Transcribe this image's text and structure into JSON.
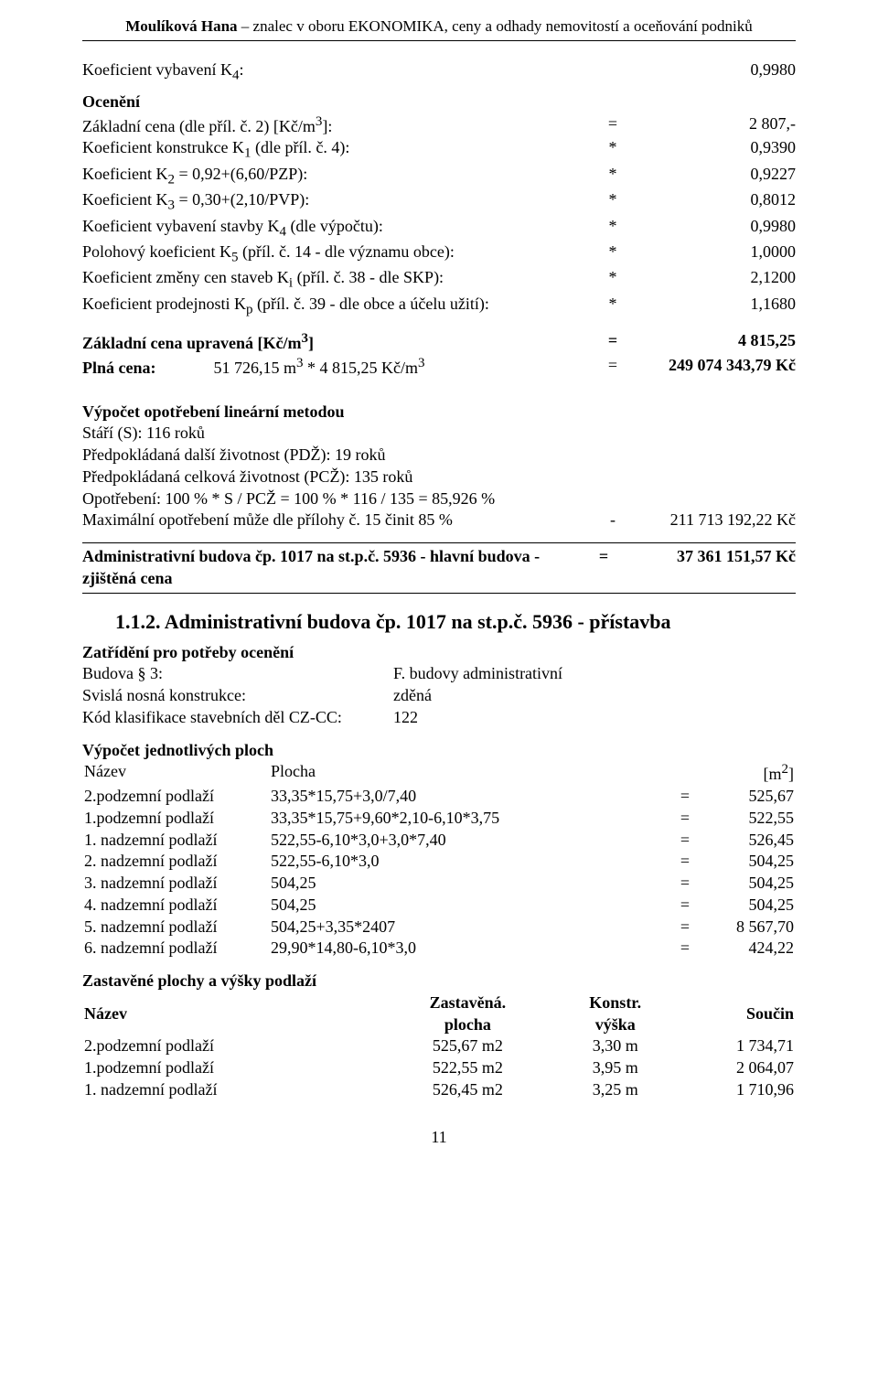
{
  "header": {
    "name_bold": "Moulíková Hana",
    "rest": " – znalec v oboru EKONOMIKA, ceny a odhady nemovitostí a oceňování podniků"
  },
  "koef_vybaveni": {
    "label": "Koeficient vybavení K",
    "sub": "4",
    "after": ":",
    "value": "0,9980"
  },
  "oceneni_title": "Ocenění",
  "lines1": [
    {
      "label_html": "Základní cena (dle příl. č. 2) [Kč/m<sup>3</sup>]:",
      "op": "=",
      "val": "2 807,-"
    },
    {
      "label_html": "Koeficient konstrukce K<sub>1</sub> (dle příl. č. 4):",
      "op": "*",
      "val": "0,9390"
    },
    {
      "label_html": "Koeficient K<sub>2</sub> = 0,92+(6,60/PZP):",
      "op": "*",
      "val": "0,9227"
    },
    {
      "label_html": "Koeficient K<sub>3</sub> = 0,30+(2,10/PVP):",
      "op": "*",
      "val": "0,8012"
    },
    {
      "label_html": "Koeficient vybavení stavby K<sub>4</sub> (dle výpočtu):",
      "op": "*",
      "val": "0,9980"
    },
    {
      "label_html": "Polohový koeficient K<sub>5</sub> (příl. č. 14 - dle významu obce):",
      "op": "*",
      "val": "1,0000"
    },
    {
      "label_html": "Koeficient změny cen staveb K<sub>i</sub> (příl. č. 38 - dle SKP):",
      "op": "*",
      "val": "2,1200"
    },
    {
      "label_html": "Koeficient prodejnosti K<sub>p</sub> (příl. č. 39 - dle obce a účelu užití):",
      "op": "*",
      "val": "1,1680"
    }
  ],
  "upravena": {
    "label_html": "Základní cena upravená [Kč/m<sup>3</sup>]",
    "op": "=",
    "val": "4 815,25"
  },
  "plna": {
    "label_html": "<b>Plná cena:</b>&nbsp;&nbsp;&nbsp;&nbsp;&nbsp;&nbsp;&nbsp;&nbsp;&nbsp;&nbsp;&nbsp;&nbsp;&nbsp;&nbsp;51 726,15 m<sup>3</sup> * 4 815,25 Kč/m<sup>3</sup>",
    "op": "=",
    "val": "249 074 343,79 Kč"
  },
  "opotrebeni": {
    "title": "Výpočet opotřebení lineární metodou",
    "line1": "Stáří (S): 116 roků",
    "line2": "Předpokládaná další životnost (PDŽ): 19 roků",
    "line3": "Předpokládaná celková životnost (PCŽ): 135 roků",
    "line4": "Opotřebení: 100 % * S / PCŽ = 100 % * 116 / 135 = 85,926 %",
    "line5_label": "Maximální opotřebení může dle přílohy č. 15 činit 85 %",
    "line5_op": "-",
    "line5_val": "211 713 192,22 Kč"
  },
  "admin1": {
    "label": "Administrativní budova čp. 1017 na st.p.č. 5936 - hlavní budova - zjištěná cena",
    "op": "=",
    "val": "37 361 151,57 Kč"
  },
  "section112": "1.1.2. Administrativní budova čp. 1017 na st.p.č. 5936 - přístavba",
  "zatrideni": {
    "title": "Zatřídění pro potřeby ocenění",
    "rows": [
      [
        "Budova § 3:",
        "F. budovy administrativní"
      ],
      [
        "Svislá nosná konstrukce:",
        "zděná"
      ],
      [
        "Kód klasifikace stavebních děl CZ-CC:",
        "122"
      ]
    ]
  },
  "plochy": {
    "title": "Výpočet jednotlivých ploch",
    "head_name": "Název",
    "head_expr": "Plocha",
    "head_unit_html": "[m<sup>2</sup>]",
    "rows": [
      {
        "name": "2.podzemní podlaží",
        "expr": "33,35*15,75+3,0/7,40",
        "eq": "=",
        "res": "525,67"
      },
      {
        "name": "1.podzemní podlaží",
        "expr": "33,35*15,75+9,60*2,10-6,10*3,75",
        "eq": "=",
        "res": "522,55"
      },
      {
        "name": "1. nadzemní podlaží",
        "expr": "522,55-6,10*3,0+3,0*7,40",
        "eq": "=",
        "res": "526,45"
      },
      {
        "name": "2. nadzemní podlaží",
        "expr": "522,55-6,10*3,0",
        "eq": "=",
        "res": "504,25"
      },
      {
        "name": "3. nadzemní podlaží",
        "expr": "504,25",
        "eq": "=",
        "res": "504,25"
      },
      {
        "name": "4. nadzemní podlaží",
        "expr": "504,25",
        "eq": "=",
        "res": "504,25"
      },
      {
        "name": "5. nadzemní podlaží",
        "expr": "504,25+3,35*2407",
        "eq": "=",
        "res": "8 567,70"
      },
      {
        "name": "6. nadzemní podlaží",
        "expr": "29,90*14,80-6,10*3,0",
        "eq": "=",
        "res": "424,22"
      }
    ]
  },
  "zast": {
    "title": "Zastavěné plochy a výšky podlaží",
    "head_name": "Název",
    "head_zp1": "Zastavěná.",
    "head_zp2": "plocha",
    "head_kv1": "Konstr.",
    "head_kv2": "výška",
    "head_sc": "Součin",
    "rows": [
      {
        "name": "2.podzemní podlaží",
        "zp": "525,67 m2",
        "kv": "3,30 m",
        "sc": "1 734,71"
      },
      {
        "name": "1.podzemní podlaží",
        "zp": "522,55 m2",
        "kv": "3,95 m",
        "sc": "2 064,07"
      },
      {
        "name": "1. nadzemní podlaží",
        "zp": "526,45 m2",
        "kv": "3,25 m",
        "sc": "1 710,96"
      }
    ]
  },
  "page_number": "11"
}
